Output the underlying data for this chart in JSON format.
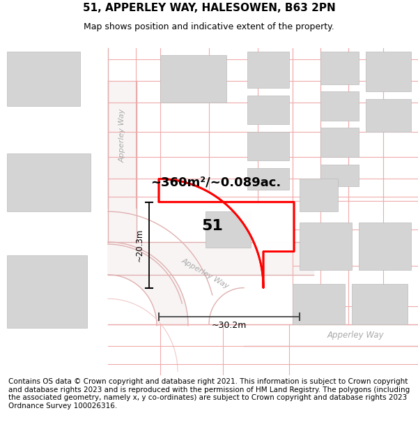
{
  "title": "51, APPERLEY WAY, HALESOWEN, B63 2PN",
  "subtitle": "Map shows position and indicative extent of the property.",
  "footer": "Contains OS data © Crown copyright and database right 2021. This information is subject to Crown copyright and database rights 2023 and is reproduced with the permission of HM Land Registry. The polygons (including the associated geometry, namely x, y co-ordinates) are subject to Crown copyright and database rights 2023 Ordnance Survey 100026316.",
  "area_label": "~360m²/~0.089ac.",
  "number_label": "51",
  "dim_width": "~30.2m",
  "dim_height": "~20.3m",
  "road_label_diagonal": "Apperley Way",
  "road_label_vertical": "Apperley Way",
  "road_label_right": "Apperley Way",
  "background_color": "#ffffff",
  "plot_border_color": "#ff0000",
  "building_fill": "#d4d4d4",
  "building_edge": "#bbbbbb",
  "grid_line_color": "#f0aaaa",
  "road_border_color": "#e0b0b0",
  "title_fontsize": 11,
  "subtitle_fontsize": 9,
  "footer_fontsize": 7.5
}
